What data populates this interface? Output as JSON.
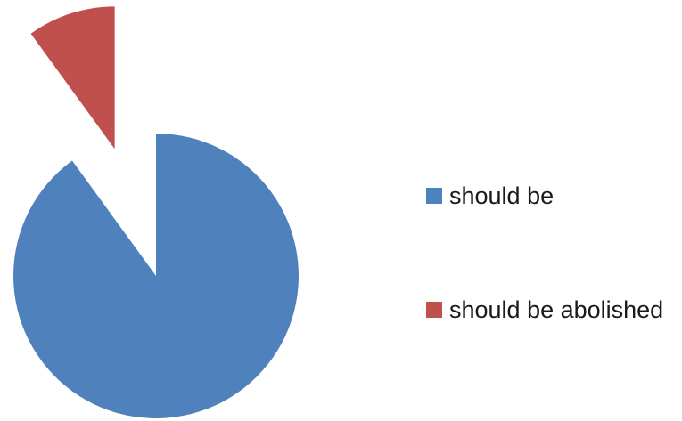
{
  "chart_data": {
    "type": "pie",
    "slices": [
      {
        "label": "should be",
        "value": 90,
        "color": "#4F81BD",
        "exploded": false
      },
      {
        "label": "should be abolished",
        "value": 10,
        "color": "#C0504D",
        "exploded": true
      }
    ],
    "legend": {
      "placement": "right",
      "entries": [
        {
          "label": "should be",
          "color": "#4F81BD"
        },
        {
          "label": "should be abolished",
          "color": "#C0504D"
        }
      ]
    },
    "start_angle_deg": 0,
    "direction": "clockwise"
  }
}
